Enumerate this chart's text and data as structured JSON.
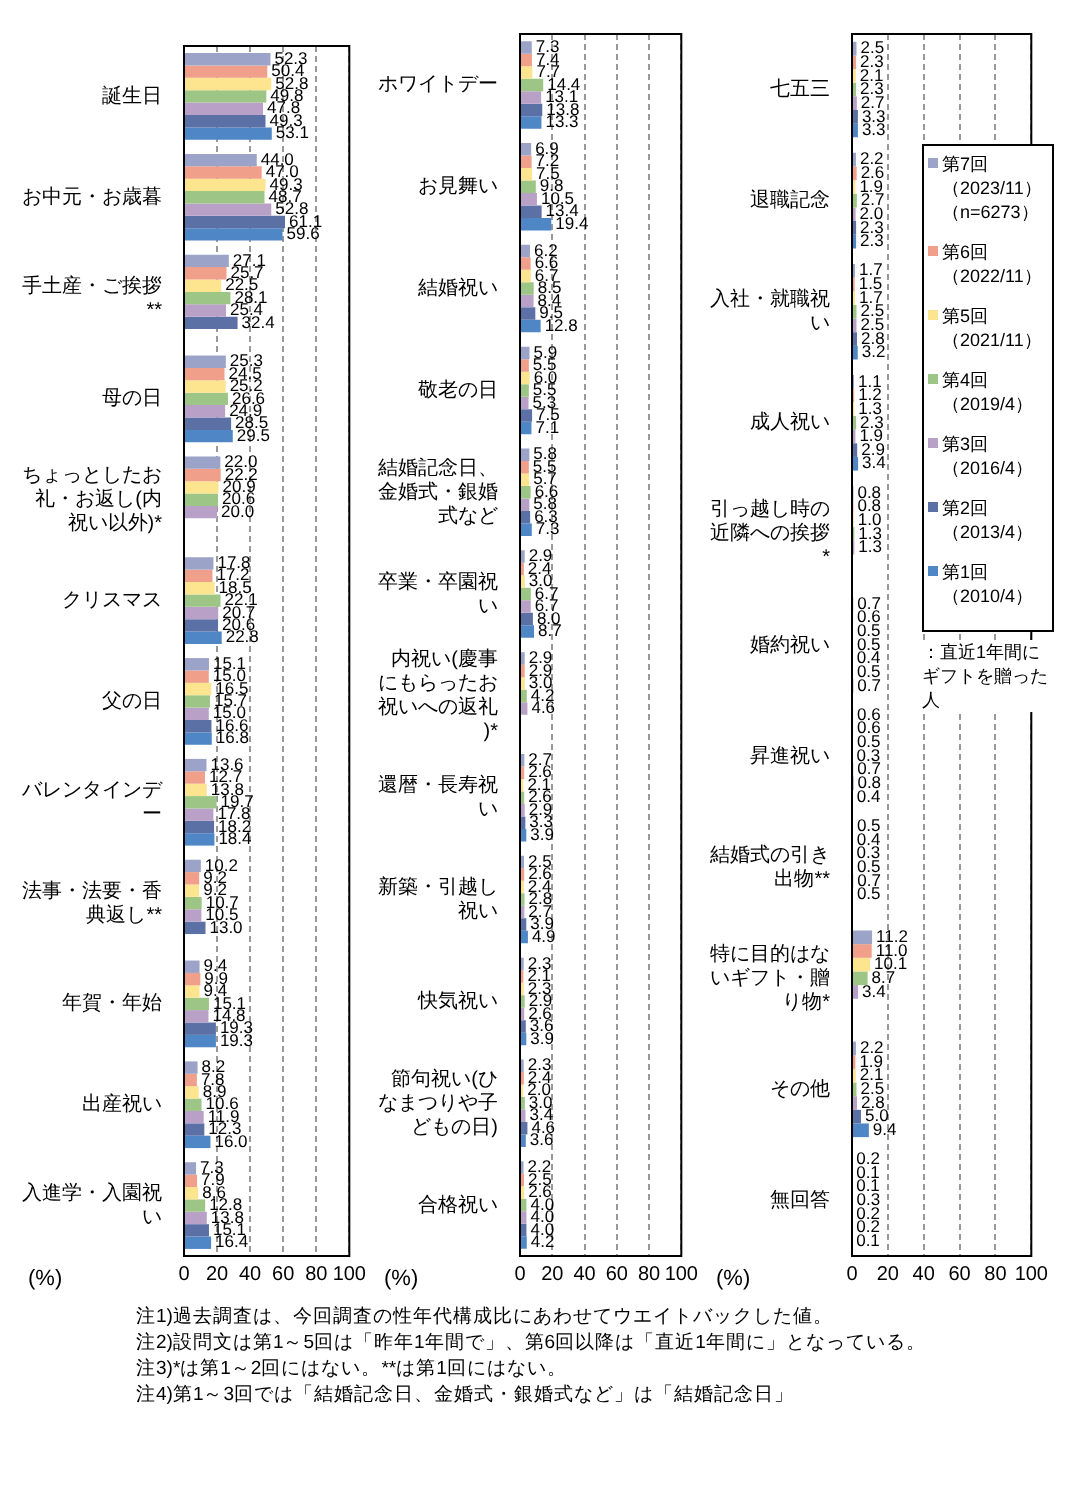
{
  "chart_data": [
    {
      "type": "bar",
      "orientation": "horizontal",
      "categories": [
        "誕生日",
        "お中元・お歳暮",
        "手土産・ご挨拶**",
        "母の日",
        "ちょっとしたお礼・お返し(内祝い以外)*",
        "クリスマス",
        "父の日",
        "バレンタインデー",
        "法事・法要・香典返し**",
        "年賀・年始",
        "出産祝い",
        "入進学・入園祝い"
      ],
      "series": [
        {
          "color": "#9ba3c8",
          "values": [
            52.3,
            44.0,
            27.1,
            25.3,
            22.0,
            17.8,
            15.1,
            13.6,
            10.2,
            9.4,
            8.2,
            7.3
          ],
          "value_labels": [
            "52.3",
            "44.0",
            "27.1",
            "25.3",
            "22.0",
            "17.8",
            "15.1",
            "13.6",
            "10.2",
            "9.4",
            "8.2",
            "7.3"
          ]
        },
        {
          "color": "#f0a08a",
          "values": [
            50.4,
            47.0,
            25.7,
            24.5,
            22.2,
            17.2,
            15.0,
            12.7,
            9.2,
            9.9,
            7.8,
            7.9
          ],
          "value_labels": [
            "50.4",
            "47.0",
            "25.7",
            "24.5",
            "22.2",
            "17.2",
            "15.0",
            "12.7",
            "9.2",
            "9.9",
            "7.8",
            "7.9"
          ]
        },
        {
          "color": "#fde48f",
          "values": [
            52.8,
            49.3,
            22.5,
            25.2,
            20.9,
            18.5,
            16.5,
            13.8,
            9.2,
            9.4,
            8.9,
            8.6
          ],
          "value_labels": [
            "52.8",
            "49.3",
            "22.5",
            "25.2",
            "20.9",
            "18.5",
            "16.5",
            "13.8",
            "9.2",
            "9.4",
            "8.9",
            "8.6"
          ]
        },
        {
          "color": "#9dc686",
          "values": [
            49.8,
            48.7,
            28.1,
            26.6,
            20.6,
            22.1,
            15.7,
            19.7,
            10.7,
            15.1,
            10.6,
            12.8
          ],
          "value_labels": [
            "49.8",
            "48.7",
            "28.1",
            "26.6",
            "20.6",
            "22.1",
            "15.7",
            "19.7",
            "10.7",
            "15.1",
            "10.6",
            "12.8"
          ]
        },
        {
          "color": "#b9a0c7",
          "values": [
            47.8,
            52.8,
            25.4,
            24.9,
            20.0,
            20.7,
            15.0,
            17.8,
            10.5,
            14.8,
            11.9,
            13.8
          ],
          "value_labels": [
            "47.8",
            "52.8",
            "25.4",
            "24.9",
            "20.0",
            "20.7",
            "15.0",
            "17.8",
            "10.5",
            "14.8",
            "11.9",
            "13.8"
          ]
        },
        {
          "color": "#5b70a5",
          "values": [
            49.3,
            61.1,
            32.4,
            28.5,
            null,
            20.6,
            16.6,
            18.2,
            13.0,
            19.3,
            12.3,
            15.1
          ],
          "value_labels": [
            "49.3",
            "61.1",
            "32.4",
            "28.5",
            null,
            "20.6",
            "16.6",
            "18.2",
            "13.0",
            "19.3",
            "12.3",
            "15.1"
          ]
        },
        {
          "color": "#4f86c6",
          "values": [
            53.1,
            59.6,
            null,
            29.5,
            null,
            22.8,
            16.8,
            18.4,
            null,
            19.3,
            16.0,
            16.4
          ],
          "value_labels": [
            "53.1",
            "59.6",
            null,
            "29.5",
            null,
            "22.8",
            "16.8",
            "18.4",
            null,
            "19.3",
            "16.0",
            "16.4"
          ]
        }
      ],
      "xlim": [
        0,
        100
      ],
      "xticks": [
        0,
        20,
        40,
        60,
        80,
        100
      ],
      "xlabel": "(%)",
      "grid": "x"
    },
    {
      "type": "bar",
      "orientation": "horizontal",
      "categories": [
        "ホワイトデー",
        "お見舞い",
        "結婚祝い",
        "敬老の日",
        "結婚記念日、金婚式・銀婚式など",
        "卒業・卒園祝い",
        "内祝い(慶事にもらったお祝いへの返礼)*",
        "還暦・長寿祝い",
        "新築・引越し祝い",
        "快気祝い",
        "節句祝い(ひなまつりや子どもの日)",
        "合格祝い"
      ],
      "series": [
        {
          "color": "#9ba3c8",
          "values": [
            7.3,
            6.9,
            6.2,
            5.9,
            5.8,
            2.9,
            2.9,
            2.7,
            2.5,
            2.3,
            2.3,
            2.2
          ],
          "value_labels": [
            "7.3",
            "6.9",
            "6.2",
            "5.9",
            "5.8",
            "2.9",
            "2.9",
            "2.7",
            "2.5",
            "2.3",
            "2.3",
            "2.2"
          ]
        },
        {
          "color": "#f0a08a",
          "values": [
            7.4,
            7.2,
            6.6,
            5.5,
            5.5,
            2.4,
            2.9,
            2.6,
            2.6,
            2.1,
            2.4,
            2.5
          ],
          "value_labels": [
            "7.4",
            "7.2",
            "6.6",
            "5.5",
            "5.5",
            "2.4",
            "2.9",
            "2.6",
            "2.6",
            "2.1",
            "2.4",
            "2.5"
          ]
        },
        {
          "color": "#fde48f",
          "values": [
            7.7,
            7.5,
            6.7,
            6.0,
            5.7,
            3.0,
            3.0,
            2.1,
            2.4,
            2.3,
            2.0,
            2.6
          ],
          "value_labels": [
            "7.7",
            "7.5",
            "6.7",
            "6.0",
            "5.7",
            "3.0",
            "3.0",
            "2.1",
            "2.4",
            "2.3",
            "2.0",
            "2.6"
          ]
        },
        {
          "color": "#9dc686",
          "values": [
            14.4,
            9.8,
            8.5,
            5.5,
            6.6,
            6.7,
            4.2,
            2.6,
            2.8,
            2.9,
            3.0,
            4.0
          ],
          "value_labels": [
            "14.4",
            "9.8",
            "8.5",
            "5.5",
            "6.6",
            "6.7",
            "4.2",
            "2.6",
            "2.8",
            "2.9",
            "3.0",
            "4.0"
          ]
        },
        {
          "color": "#b9a0c7",
          "values": [
            13.1,
            10.5,
            8.4,
            5.3,
            5.8,
            6.7,
            4.6,
            2.9,
            2.7,
            2.6,
            3.4,
            4.0
          ],
          "value_labels": [
            "13.1",
            "10.5",
            "8.4",
            "5.3",
            "5.8",
            "6.7",
            "4.6",
            "2.9",
            "2.7",
            "2.6",
            "3.4",
            "4.0"
          ]
        },
        {
          "color": "#5b70a5",
          "values": [
            13.8,
            13.4,
            9.5,
            7.5,
            6.3,
            8.0,
            null,
            3.3,
            3.9,
            3.6,
            4.6,
            4.0
          ],
          "value_labels": [
            "13.8",
            "13.4",
            "9.5",
            "7.5",
            "6.3",
            "8.0",
            null,
            "3.3",
            "3.9",
            "3.6",
            "4.6",
            "4.0"
          ]
        },
        {
          "color": "#4f86c6",
          "values": [
            13.3,
            19.4,
            12.8,
            7.1,
            7.3,
            8.7,
            null,
            3.9,
            4.9,
            3.9,
            3.6,
            4.2
          ],
          "value_labels": [
            "13.3",
            "19.4",
            "12.8",
            "7.1",
            "7.3",
            "8.7",
            null,
            "3.9",
            "4.9",
            "3.9",
            "3.6",
            "4.2"
          ]
        }
      ],
      "xlim": [
        0,
        100
      ],
      "xticks": [
        0,
        20,
        40,
        60,
        80,
        100
      ],
      "xlabel": "(%)",
      "grid": "x"
    },
    {
      "type": "bar",
      "orientation": "horizontal",
      "categories": [
        "七五三",
        "退職記念",
        "入社・就職祝い",
        "成人祝い",
        "引っ越し時の近隣への挨拶*",
        "婚約祝い",
        "昇進祝い",
        "結婚式の引き出物**",
        "特に目的はないギフト・贈り物*",
        "その他",
        "無回答"
      ],
      "series": [
        {
          "name": "第7回（2023/11）（n=6273）",
          "color": "#9ba3c8",
          "values": [
            2.5,
            2.2,
            1.7,
            1.1,
            0.8,
            0.7,
            0.6,
            0.5,
            11.2,
            2.2,
            0.2
          ],
          "value_labels": [
            "2.5",
            "2.2",
            "1.7",
            "1.1",
            "0.8",
            "0.7",
            "0.6",
            "0.5",
            "11.2",
            "2.2",
            "0.2"
          ]
        },
        {
          "name": "第6回（2022/11）",
          "color": "#f0a08a",
          "values": [
            2.3,
            2.6,
            1.5,
            1.2,
            0.8,
            0.6,
            0.6,
            0.4,
            11.0,
            1.9,
            0.1
          ],
          "value_labels": [
            "2.3",
            "2.6",
            "1.5",
            "1.2",
            "0.8",
            "0.6",
            "0.6",
            "0.4",
            "11.0",
            "1.9",
            "0.1"
          ]
        },
        {
          "name": "第5回（2021/11）",
          "color": "#fde48f",
          "values": [
            2.1,
            1.9,
            1.7,
            1.3,
            1.0,
            0.5,
            0.5,
            0.3,
            10.1,
            2.1,
            0.1
          ],
          "value_labels": [
            "2.1",
            "1.9",
            "1.7",
            "1.3",
            "1.0",
            "0.5",
            "0.5",
            "0.3",
            "10.1",
            "2.1",
            "0.1"
          ]
        },
        {
          "name": "第4回（2019/4）",
          "color": "#9dc686",
          "values": [
            2.3,
            2.7,
            2.5,
            2.3,
            1.3,
            0.5,
            0.3,
            0.5,
            8.7,
            2.5,
            0.3
          ],
          "value_labels": [
            "2.3",
            "2.7",
            "2.5",
            "2.3",
            "1.3",
            "0.5",
            "0.3",
            "0.5",
            "8.7",
            "2.5",
            "0.3"
          ]
        },
        {
          "name": "第3回（2016/4）",
          "color": "#b9a0c7",
          "values": [
            2.7,
            2.0,
            2.5,
            1.9,
            1.3,
            0.4,
            0.7,
            0.7,
            3.4,
            2.8,
            0.2
          ],
          "value_labels": [
            "2.7",
            "2.0",
            "2.5",
            "1.9",
            "1.3",
            "0.4",
            "0.7",
            "0.7",
            "3.4",
            "2.8",
            "0.2"
          ]
        },
        {
          "name": "第2回（2013/4）",
          "color": "#5b70a5",
          "values": [
            3.3,
            2.3,
            2.8,
            2.9,
            null,
            0.5,
            0.8,
            0.5,
            null,
            5.0,
            0.2
          ],
          "value_labels": [
            "3.3",
            "2.3",
            "2.8",
            "2.9",
            null,
            "0.5",
            "0.8",
            "0.5",
            null,
            "5.0",
            "0.2"
          ]
        },
        {
          "name": "第1回（2010/4）",
          "color": "#4f86c6",
          "values": [
            3.3,
            2.3,
            3.2,
            3.4,
            null,
            0.7,
            0.4,
            null,
            null,
            9.4,
            0.1
          ],
          "value_labels": [
            "3.3",
            "2.3",
            "3.2",
            "3.4",
            null,
            "0.7",
            "0.4",
            null,
            null,
            "9.4",
            "0.1"
          ]
        }
      ],
      "xlim": [
        0,
        100
      ],
      "xticks": [
        0,
        20,
        40,
        60,
        80,
        100
      ],
      "xlabel": "(%)",
      "grid": "x",
      "legend": "top right",
      "annotations": [
        "：直近1年間にギフトを贈った人",
        "注1)過去調査は、今回調査の性年代構成比にあわせてウエイトバックした値。",
        "注2)設問文は第1～5回は「昨年1年間で」、第6回以降は「直近1年間に」となっている。",
        "注3)*は第1～2回にはない。**は第1回にはない。",
        "注4)第1～3回では「結婚記念日、金婚式・銀婚式など」は「結婚記念日」"
      ]
    }
  ]
}
